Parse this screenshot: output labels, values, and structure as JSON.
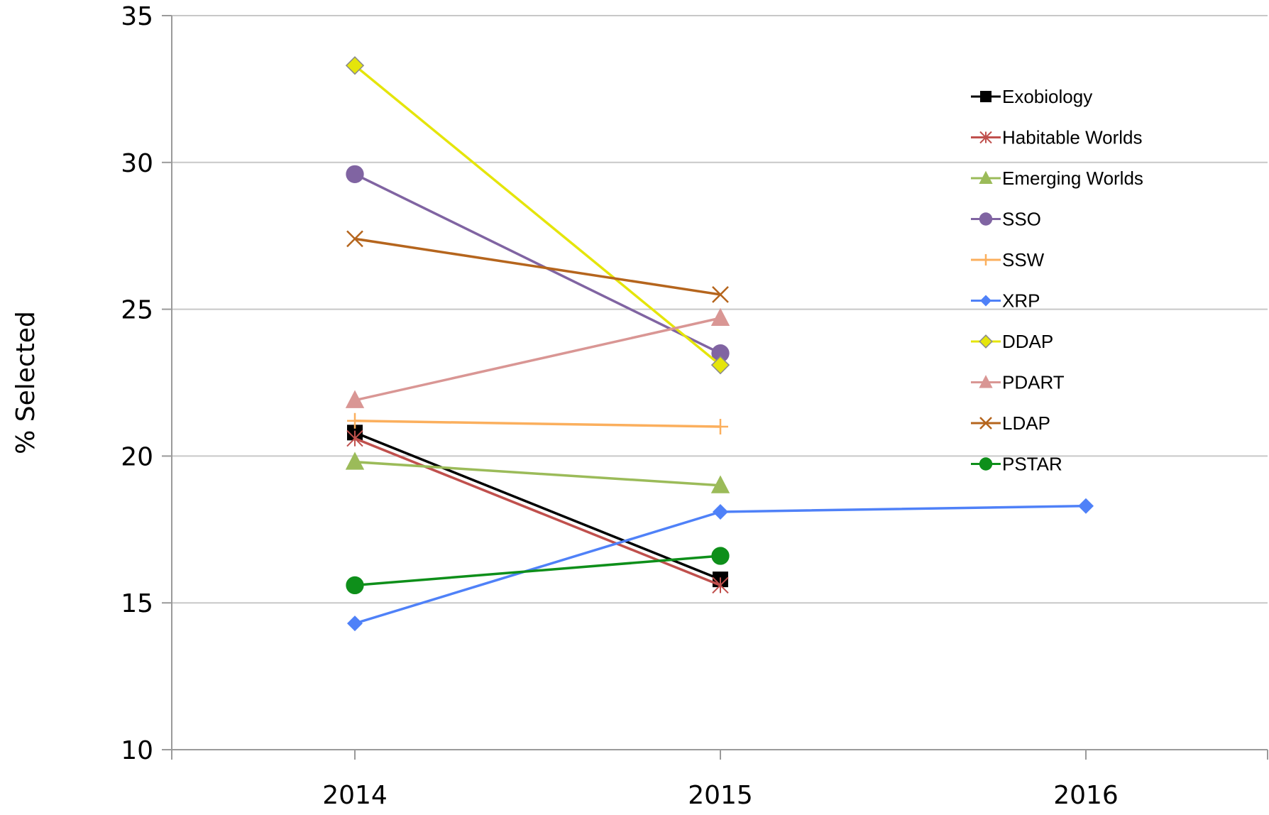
{
  "chart_data": {
    "type": "line",
    "title": "",
    "xlabel": "",
    "ylabel": "% Selected",
    "ylim": [
      10,
      35
    ],
    "yticks": [
      10,
      15,
      20,
      25,
      30,
      35
    ],
    "categories": [
      "2014",
      "2015",
      "2016"
    ],
    "grid": "horizontal",
    "legend_position": "top-right",
    "series": [
      {
        "name": "Exobiology",
        "color": "#000000",
        "marker": "square",
        "values": [
          20.8,
          15.8,
          null
        ]
      },
      {
        "name": "Habitable Worlds",
        "color": "#c0504d",
        "marker": "asterisk",
        "values": [
          20.6,
          15.6,
          null
        ]
      },
      {
        "name": "Emerging Worlds",
        "color": "#9bbb59",
        "marker": "triangle",
        "values": [
          19.8,
          19.0,
          null
        ]
      },
      {
        "name": "SSO",
        "color": "#8064a2",
        "marker": "circle",
        "values": [
          29.6,
          23.5,
          null
        ]
      },
      {
        "name": "SSW",
        "color": "#fbaf5d",
        "marker": "plus",
        "values": [
          21.2,
          21.0,
          null
        ]
      },
      {
        "name": "XRP",
        "color": "#4f81f8",
        "marker": "diamond",
        "values": [
          14.3,
          18.1,
          18.3
        ]
      },
      {
        "name": "DDAP",
        "color": "#e5e50b",
        "marker": "diamond-outline",
        "values": [
          33.3,
          23.1,
          null
        ]
      },
      {
        "name": "PDART",
        "color": "#d99694",
        "marker": "triangle",
        "values": [
          21.9,
          24.7,
          null
        ]
      },
      {
        "name": "LDAP",
        "color": "#b5651d",
        "marker": "x",
        "values": [
          27.4,
          25.5,
          null
        ]
      },
      {
        "name": "PSTAR",
        "color": "#0e8f1a",
        "marker": "circle",
        "values": [
          15.6,
          16.6,
          null
        ]
      }
    ]
  }
}
